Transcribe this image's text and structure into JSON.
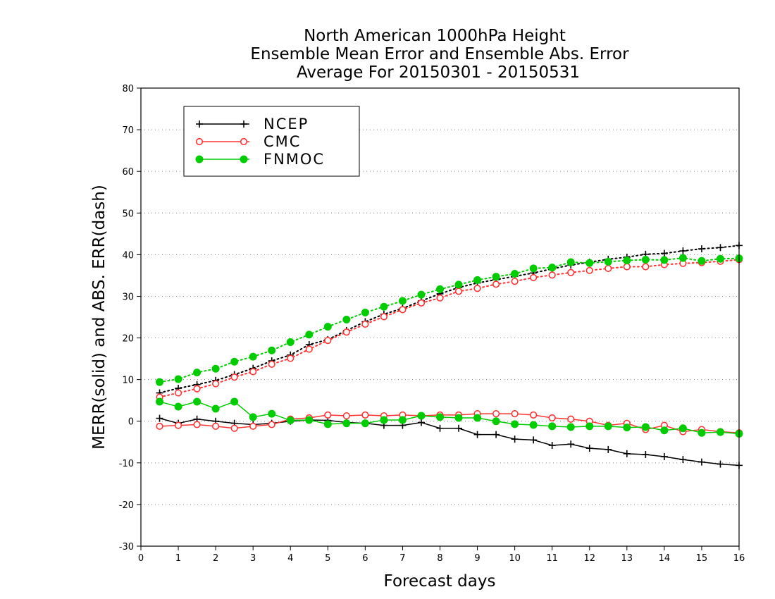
{
  "chart_data": {
    "type": "line",
    "title": [
      "North American 1000hPa Height",
      "Ensemble Mean Error and Ensemble Abs. Error",
      "Average For 20150301 - 20150531"
    ],
    "xlabel": "Forecast days",
    "ylabel": "MERR(solid) and ABS. ERR(dash)",
    "xlim": [
      0,
      16
    ],
    "ylim": [
      -30,
      80
    ],
    "x_ticks": [
      0,
      1,
      2,
      3,
      4,
      5,
      6,
      7,
      8,
      9,
      10,
      11,
      12,
      13,
      14,
      15,
      16
    ],
    "y_ticks": [
      -30,
      -20,
      -10,
      0,
      10,
      20,
      30,
      40,
      50,
      60,
      70,
      80
    ],
    "grid": "horizontal dotted",
    "legend_position": "top-left",
    "x": [
      0.5,
      1,
      1.5,
      2,
      2.5,
      3,
      3.5,
      4,
      4.5,
      5,
      5.5,
      6,
      6.5,
      7,
      7.5,
      8,
      8.5,
      9,
      9.5,
      10,
      10.5,
      11,
      11.5,
      12,
      12.5,
      13,
      13.5,
      14,
      14.5,
      15,
      15.5,
      16
    ],
    "series": [
      {
        "name": "NCEP",
        "color": "#000000",
        "marker": "plus",
        "merr": [
          0.7,
          -0.5,
          0.5,
          0,
          -0.5,
          -0.8,
          -0.5,
          0,
          0.3,
          0.2,
          -0.3,
          -0.5,
          -1,
          -1,
          -0.3,
          -1.7,
          -1.7,
          -3.2,
          -3.2,
          -4.3,
          -4.5,
          -5.8,
          -5.5,
          -6.5,
          -6.8,
          -7.8,
          -8,
          -8.5,
          -9.2,
          -9.8,
          -10.3,
          -10.6
        ],
        "abs_err": [
          6.8,
          7.9,
          8.8,
          9.8,
          11.2,
          12.7,
          14.5,
          15.9,
          18.4,
          19.6,
          21.8,
          23.9,
          25.7,
          27.1,
          28.9,
          30.6,
          32.1,
          33.2,
          34,
          34.8,
          35.6,
          36.6,
          37.5,
          38.2,
          38.9,
          39.4,
          40.1,
          40.3,
          40.9,
          41.4,
          41.7,
          42.2
        ]
      },
      {
        "name": "CMC",
        "color": "#ff3333",
        "marker": "open-circle",
        "merr": [
          -1.2,
          -1,
          -0.8,
          -1.2,
          -1.7,
          -1.2,
          -0.8,
          0.5,
          0.8,
          1.5,
          1.3,
          1.5,
          1.3,
          1.5,
          1.3,
          1.5,
          1.5,
          1.8,
          1.8,
          1.8,
          1.5,
          0.8,
          0.5,
          0,
          -1,
          -0.5,
          -2,
          -1,
          -2.5,
          -2,
          -2.5,
          -2.8
        ],
        "abs_err": [
          5.8,
          6.8,
          7.8,
          9,
          10.6,
          11.9,
          13.7,
          15.1,
          17.3,
          19.4,
          21.4,
          23.3,
          25.1,
          26.8,
          28.4,
          29.6,
          31.2,
          31.9,
          32.9,
          33.6,
          34.5,
          35.1,
          35.7,
          36.2,
          36.7,
          37.1,
          37.1,
          37.6,
          37.9,
          38.1,
          38.4,
          38.8
        ]
      },
      {
        "name": "FNMOC",
        "color": "#00cc00",
        "marker": "filled-circle",
        "merr": [
          4.7,
          3.5,
          4.7,
          3,
          4.7,
          1,
          1.8,
          0.2,
          0.3,
          -0.7,
          -0.5,
          -0.5,
          0.3,
          0.3,
          1.3,
          1,
          0.8,
          0.8,
          0,
          -0.7,
          -0.9,
          -1.2,
          -1.4,
          -1.2,
          -1.2,
          -1.5,
          -1.4,
          -2.2,
          -1.7,
          -2.8,
          -2.6,
          -3
        ],
        "abs_err": [
          9.4,
          10.1,
          11.7,
          12.6,
          14.3,
          15.5,
          17,
          19,
          20.8,
          22.7,
          24.4,
          26.1,
          27.5,
          28.9,
          30.4,
          31.7,
          32.8,
          33.9,
          34.7,
          35.4,
          36.7,
          36.9,
          38.2,
          38,
          38.3,
          38.6,
          38.8,
          38.7,
          39.2,
          38.5,
          39,
          39.1
        ]
      }
    ]
  }
}
